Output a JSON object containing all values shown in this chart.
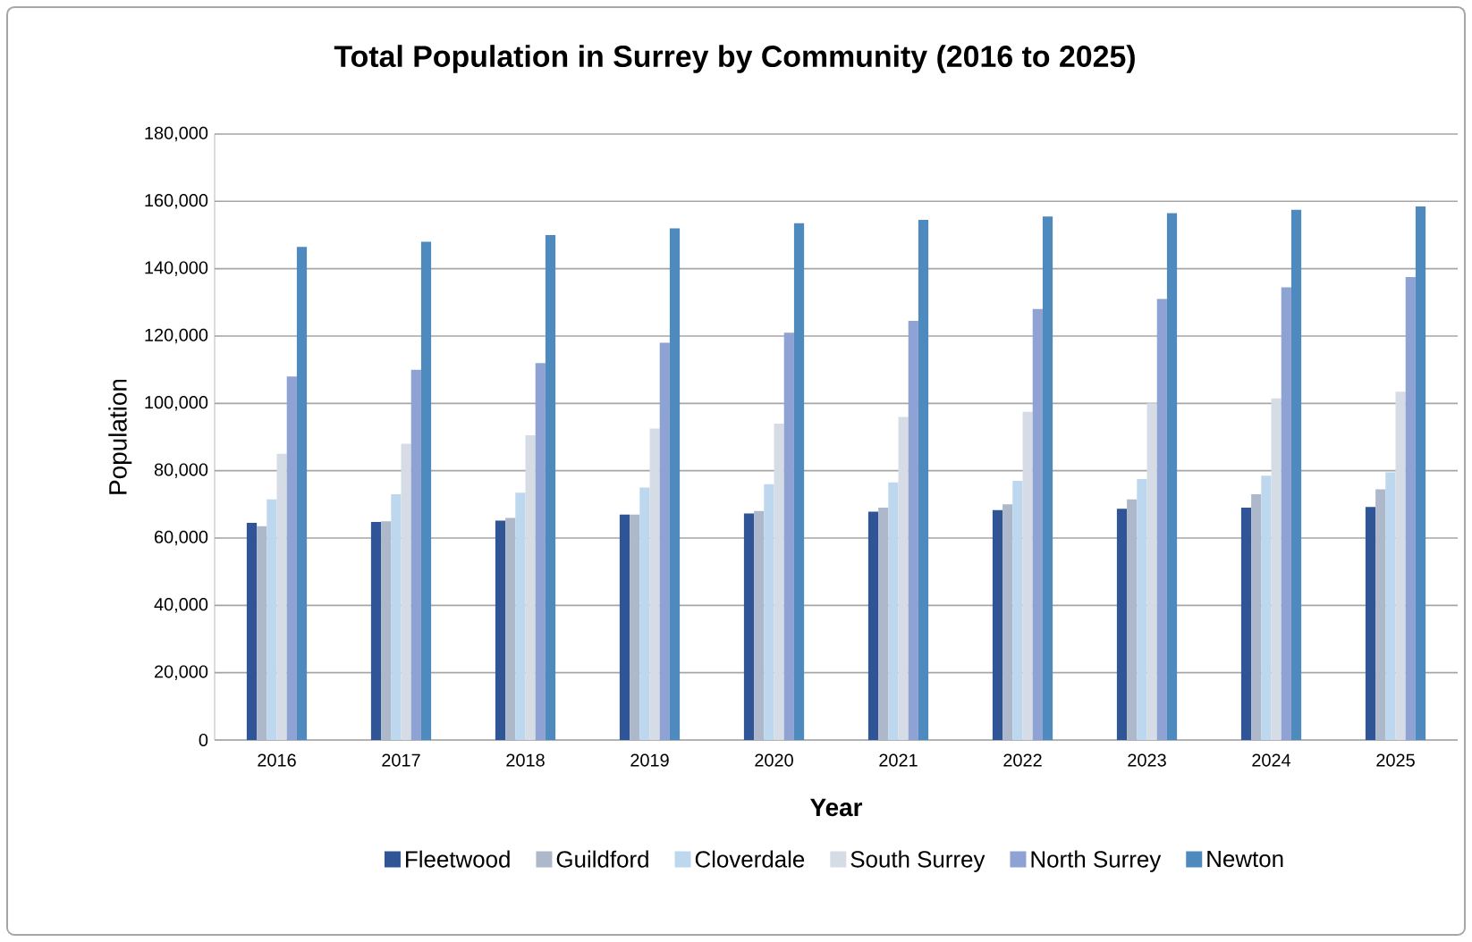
{
  "chart_data": {
    "type": "bar",
    "title": "Total Population in Surrey by Community (2016 to 2025)",
    "xlabel": "Year",
    "ylabel": "Population",
    "categories": [
      "2016",
      "2017",
      "2018",
      "2019",
      "2020",
      "2021",
      "2022",
      "2023",
      "2024",
      "2025"
    ],
    "series": [
      {
        "name": "Fleetwood",
        "color": "#2f5597",
        "values": [
          64500,
          64800,
          65200,
          67000,
          67300,
          67800,
          68300,
          68700,
          69000,
          69200
        ]
      },
      {
        "name": "Guildford",
        "color": "#adb9ca",
        "values": [
          63500,
          65000,
          66000,
          67000,
          68000,
          69000,
          70000,
          71500,
          73000,
          74500
        ]
      },
      {
        "name": "Cloverdale",
        "color": "#bdd7ee",
        "values": [
          71500,
          73000,
          73500,
          75000,
          76000,
          76500,
          77000,
          77500,
          78500,
          79500
        ]
      },
      {
        "name": "South Surrey",
        "color": "#d6dce5",
        "values": [
          85000,
          88000,
          90500,
          92500,
          94000,
          96000,
          97500,
          100000,
          101500,
          103500
        ]
      },
      {
        "name": "North Surrey",
        "color": "#8fa2d4",
        "values": [
          108000,
          110000,
          112000,
          118000,
          121000,
          124500,
          128000,
          131000,
          134500,
          137500
        ]
      },
      {
        "name": "Newton",
        "color": "#4e8abe",
        "values": [
          146500,
          148000,
          150000,
          152000,
          153500,
          154500,
          155500,
          156500,
          157500,
          158500
        ]
      }
    ],
    "ylim": [
      0,
      180000
    ],
    "yticks": [
      {
        "value": 0,
        "label": "0"
      },
      {
        "value": 20000,
        "label": "20,000"
      },
      {
        "value": 40000,
        "label": "40,000"
      },
      {
        "value": 60000,
        "label": "60,000"
      },
      {
        "value": 80000,
        "label": "80,000"
      },
      {
        "value": 100000,
        "label": "100,000"
      },
      {
        "value": 120000,
        "label": "120,000"
      },
      {
        "value": 140000,
        "label": "140,000"
      },
      {
        "value": 160000,
        "label": "160,000"
      },
      {
        "value": 180000,
        "label": "180,000"
      }
    ],
    "grid": "y",
    "legend": "bottom"
  }
}
